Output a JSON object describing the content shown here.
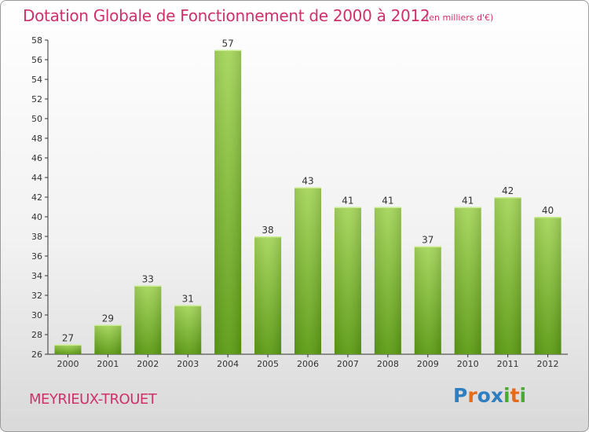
{
  "title": "Dotation Globale de Fonctionnement de 2000 à 2012",
  "unit_note": "(en milliers d'€)",
  "commune": "MEYRIEUX-TROUET",
  "logo": {
    "text": "Proxiti",
    "colors": [
      "#2e7fc1",
      "#e36c1c",
      "#2e7fc1",
      "#2e7fc1",
      "#4aa834",
      "#e36c1c",
      "#4aa834"
    ]
  },
  "colors": {
    "bar_light": "#a6d65c",
    "bar_dark": "#5c9c14",
    "title": "#d0306a"
  },
  "chart_data": {
    "type": "bar",
    "categories": [
      "2000",
      "2001",
      "2002",
      "2003",
      "2004",
      "2005",
      "2006",
      "2007",
      "2008",
      "2009",
      "2010",
      "2011",
      "2012"
    ],
    "values": [
      27,
      29,
      33,
      31,
      57,
      38,
      43,
      41,
      41,
      37,
      41,
      42,
      40
    ],
    "ylim": [
      26,
      58
    ],
    "yticks": [
      26,
      28,
      30,
      32,
      34,
      36,
      38,
      40,
      42,
      44,
      46,
      48,
      50,
      52,
      54,
      56,
      58
    ],
    "grid": false,
    "data_labels": true
  }
}
